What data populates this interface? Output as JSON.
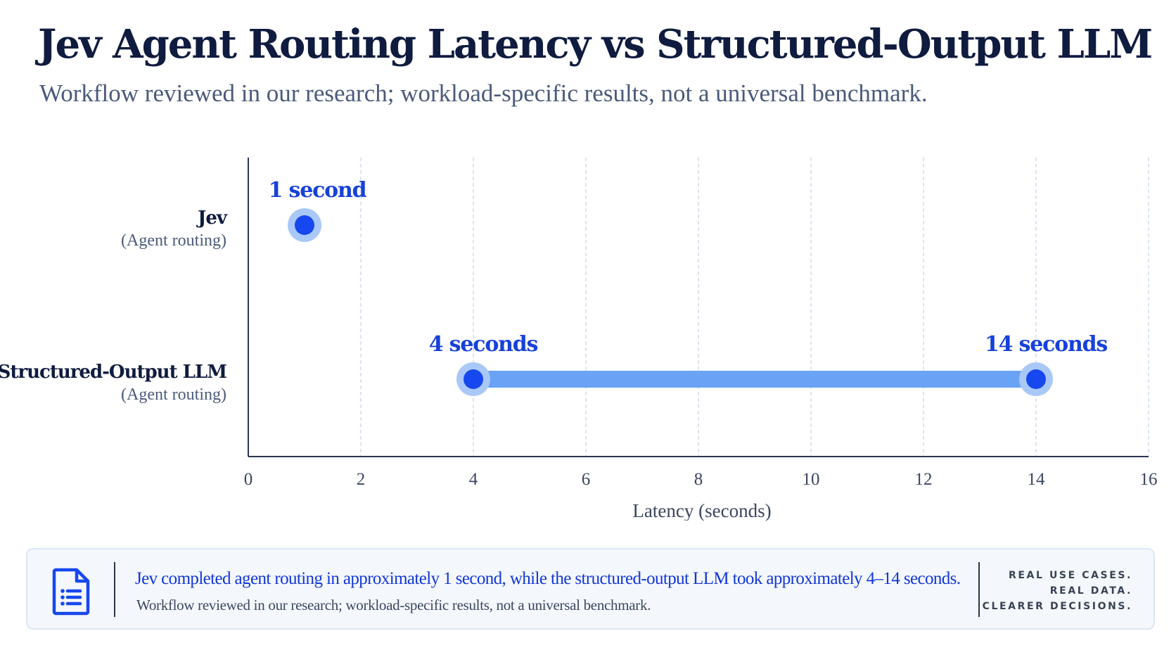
{
  "header": {
    "title": "Jev Agent Routing Latency vs Structured-Output LLM",
    "subtitle": "Workflow reviewed in our research; workload-specific results, not a universal benchmark."
  },
  "chart_data": {
    "type": "scatter",
    "orientation": "horizontal",
    "xlabel": "Latency (seconds)",
    "xlim": [
      0,
      16
    ],
    "xticks": [
      0,
      2,
      4,
      6,
      8,
      10,
      12,
      14,
      16
    ],
    "grid": true,
    "categories": [
      {
        "name": "Jev",
        "sub": "(Agent routing)"
      },
      {
        "name": "Structured-Output LLM",
        "sub": "(Agent routing)"
      }
    ],
    "series": [
      {
        "category": 0,
        "min": 1,
        "max": 1,
        "labels": [
          "1 second"
        ]
      },
      {
        "category": 1,
        "min": 4,
        "max": 14,
        "labels": [
          "4 seconds",
          "14 seconds"
        ]
      }
    ],
    "colors": {
      "point": "#1747ee",
      "halo": "#a9c8f7",
      "range_bar": "#6aa2f5",
      "label": "#1741d8",
      "axis": "#2b3550",
      "grid": "#c6d6ea",
      "category_text": "#0f1c3f",
      "sub_text": "#4a5a7a",
      "tick_text": "#3c4660"
    }
  },
  "footer": {
    "icon": "document-list-icon",
    "summary": "Jev completed agent routing in approximately 1 second, while the structured-output LLM took approximately 4–14 seconds.",
    "note": "Workflow reviewed in our research; workload-specific results, not a universal benchmark.",
    "tagline": [
      "REAL USE CASES.",
      "REAL DATA.",
      "CLEARER DECISIONS."
    ]
  }
}
